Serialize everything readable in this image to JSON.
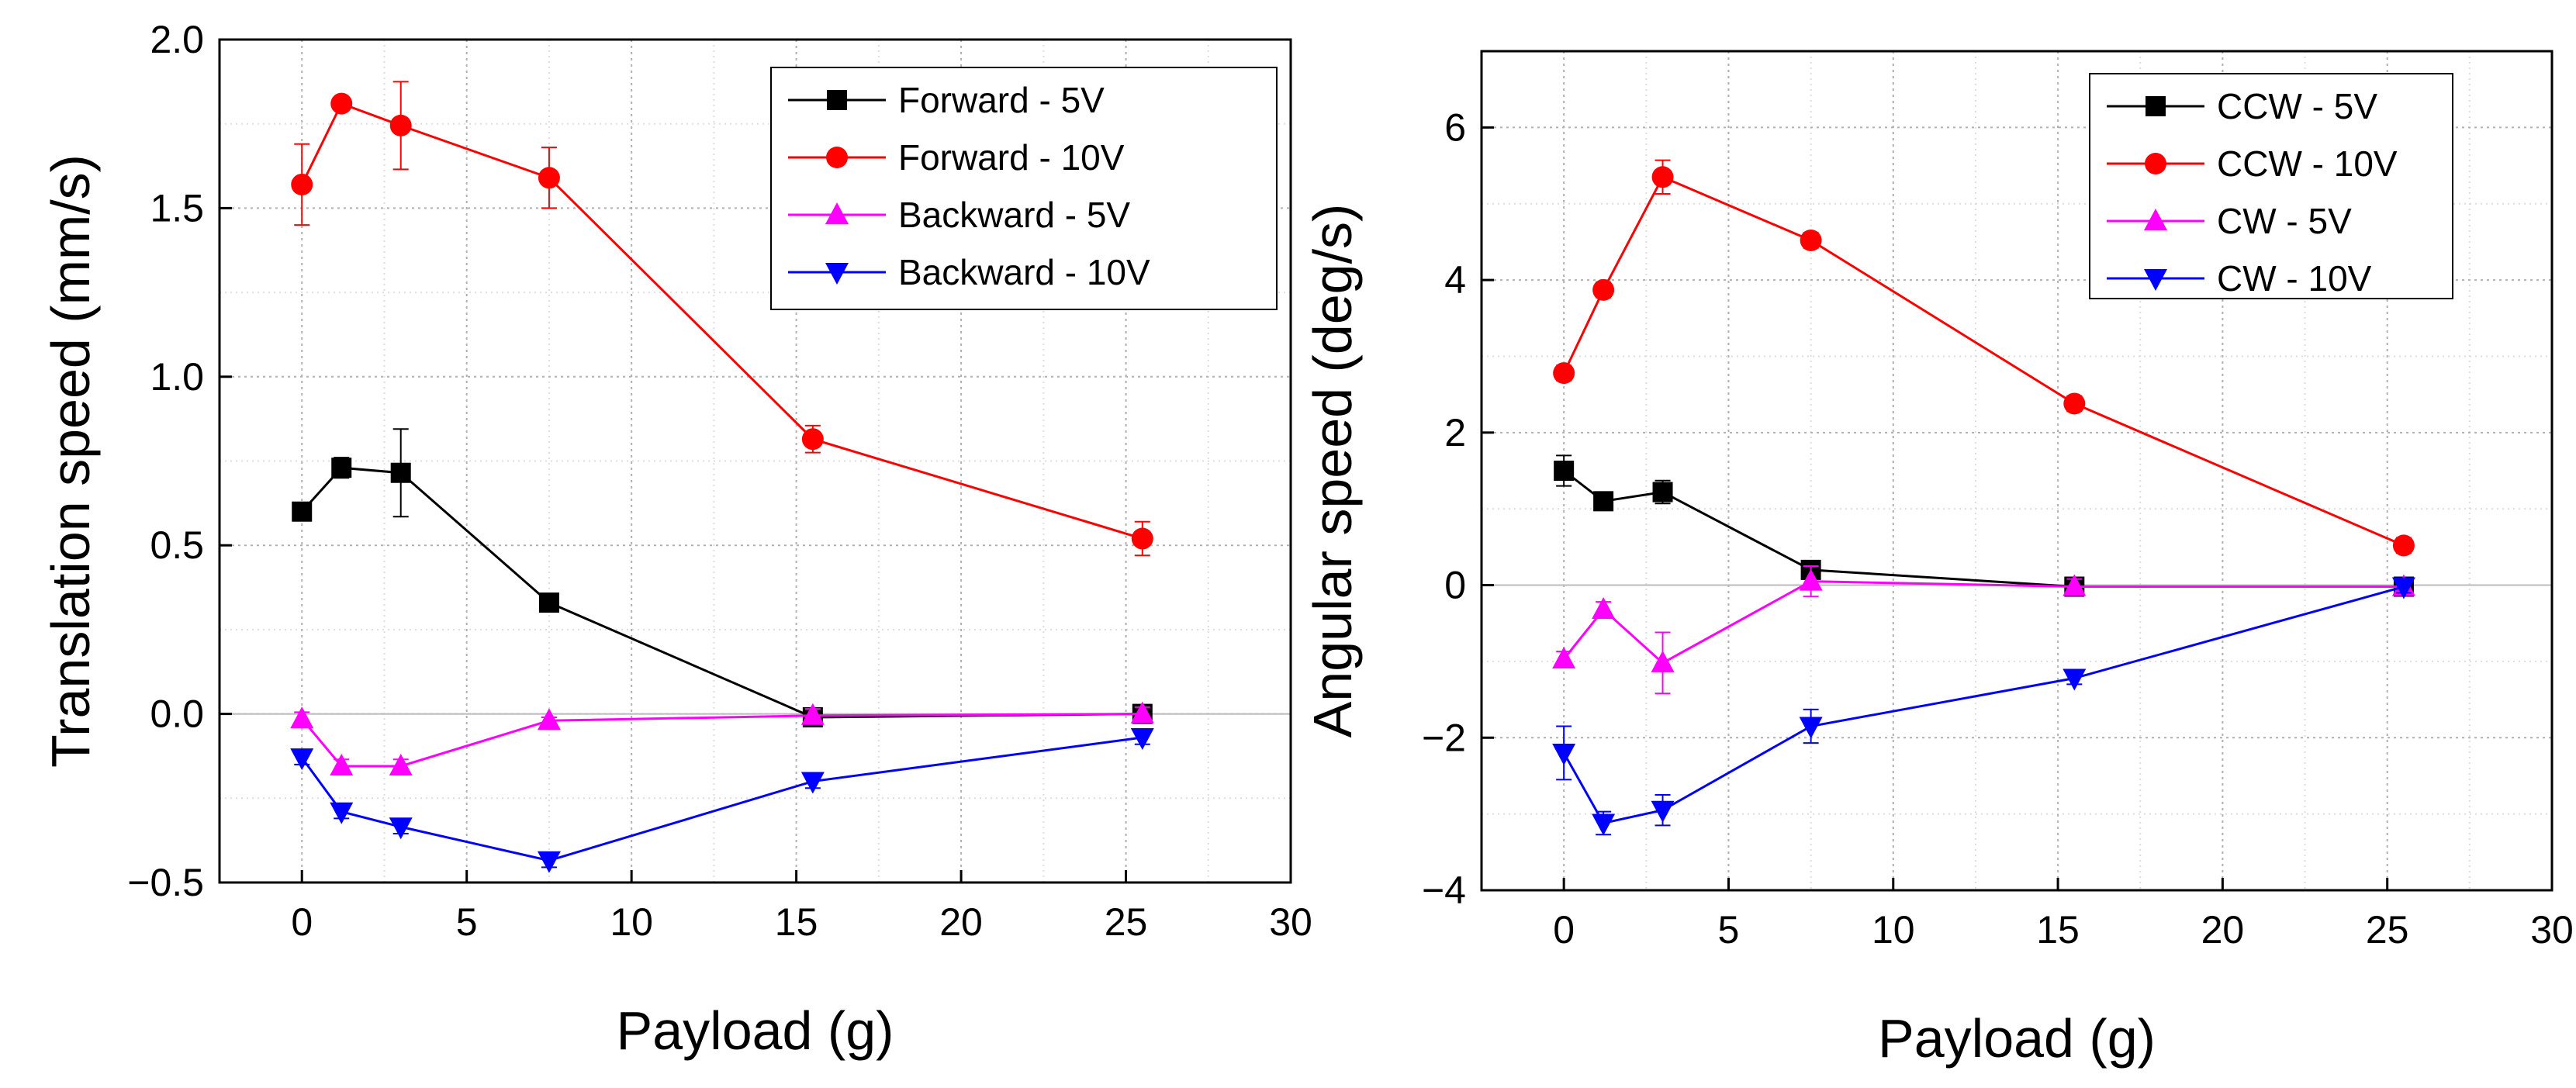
{
  "chart_data": [
    {
      "type": "line",
      "title": "",
      "xlabel": "Payload (g)",
      "ylabel": "Translation speed (mm/s)",
      "xlim": [
        -2.5,
        30
      ],
      "ylim": [
        -0.5,
        2.0
      ],
      "xticks": [
        0,
        5,
        10,
        15,
        20,
        25,
        30
      ],
      "xtick_labels": [
        "0",
        "5",
        "10",
        "15",
        "20",
        "25",
        "30"
      ],
      "yticks": [
        -0.5,
        0.0,
        0.5,
        1.0,
        1.5,
        2.0
      ],
      "ytick_labels": [
        "−0.5",
        "0.0",
        "0.5",
        "1.0",
        "1.5",
        "2.0"
      ],
      "grid": true,
      "legend_position": "top-right",
      "x": [
        0,
        1.2,
        3,
        7.5,
        15.5,
        25.5
      ],
      "series": [
        {
          "name": "Forward - 5V",
          "color": "#000000",
          "marker": "square",
          "values": [
            0.6,
            0.73,
            0.715,
            0.33,
            -0.01,
            0.0
          ],
          "errors": [
            0.02,
            0.03,
            0.13,
            0.02,
            0.02,
            0.02
          ]
        },
        {
          "name": "Forward - 10V",
          "color": "#ff0000",
          "marker": "circle",
          "values": [
            1.57,
            1.81,
            1.745,
            1.59,
            0.815,
            0.52
          ],
          "errors": [
            0.12,
            0.02,
            0.13,
            0.09,
            0.04,
            0.05
          ]
        },
        {
          "name": "Backward - 5V",
          "color": "#ff00ff",
          "marker": "triangle-up",
          "values": [
            -0.015,
            -0.155,
            -0.155,
            -0.02,
            -0.005,
            0.0
          ],
          "errors": [
            0.02,
            0.02,
            0.02,
            0.01,
            0.02,
            0.02
          ]
        },
        {
          "name": "Backward - 10V",
          "color": "#0000ff",
          "marker": "triangle-down",
          "values": [
            -0.13,
            -0.29,
            -0.335,
            -0.435,
            -0.2,
            -0.07
          ],
          "errors": [
            0.02,
            0.02,
            0.02,
            0.02,
            0.02,
            0.02
          ]
        }
      ]
    },
    {
      "type": "line",
      "title": "",
      "xlabel": "Payload (g)",
      "ylabel": "Angular speed (deg/s)",
      "xlim": [
        -2.5,
        30
      ],
      "ylim": [
        -4,
        7
      ],
      "xticks": [
        0,
        5,
        10,
        15,
        20,
        25,
        30
      ],
      "xtick_labels": [
        "0",
        "5",
        "10",
        "15",
        "20",
        "25",
        "30"
      ],
      "yticks": [
        -4,
        -2,
        0,
        2,
        4,
        6
      ],
      "ytick_labels": [
        "−4",
        "−2",
        "0",
        "2",
        "4",
        "6"
      ],
      "grid": true,
      "legend_position": "top-right",
      "x": [
        0,
        1.2,
        3,
        7.5,
        15.5,
        25.5
      ],
      "series": [
        {
          "name": "CCW - 5V",
          "color": "#000000",
          "marker": "square",
          "values": [
            1.5,
            1.1,
            1.22,
            0.2,
            -0.02,
            -0.02
          ],
          "errors": [
            0.2,
            0.08,
            0.15,
            0.1,
            0.1,
            0.08
          ]
        },
        {
          "name": "CCW - 10V",
          "color": "#ff0000",
          "marker": "circle",
          "values": [
            2.78,
            3.87,
            5.35,
            4.52,
            2.38,
            0.52
          ],
          "errors": [
            0.1,
            0.1,
            0.22,
            0.1,
            0.1,
            0.1
          ]
        },
        {
          "name": "CW - 5V",
          "color": "#ff00ff",
          "marker": "triangle-up",
          "values": [
            -0.97,
            -0.32,
            -1.02,
            0.05,
            -0.02,
            -0.02
          ],
          "errors": [
            0.1,
            0.1,
            0.4,
            0.2,
            0.1,
            0.08
          ]
        },
        {
          "name": "CW - 10V",
          "color": "#0000ff",
          "marker": "triangle-down",
          "values": [
            -2.2,
            -3.12,
            -2.95,
            -1.85,
            -1.22,
            -0.02
          ],
          "errors": [
            0.35,
            0.15,
            0.2,
            0.22,
            0.08,
            0.08
          ]
        }
      ]
    }
  ]
}
